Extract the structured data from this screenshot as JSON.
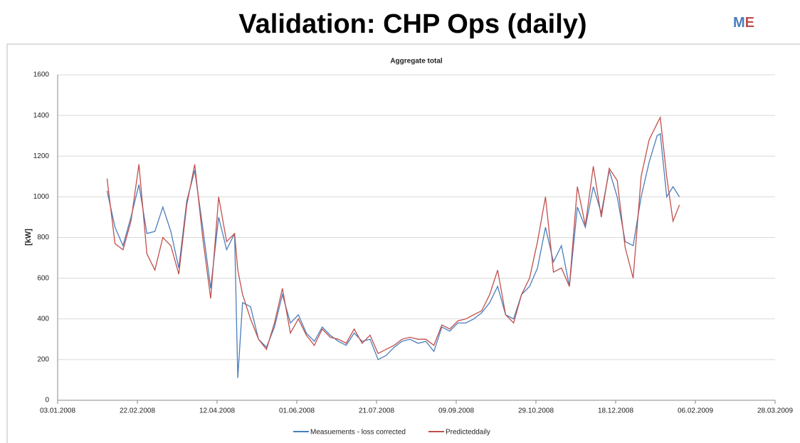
{
  "slide": {
    "title": "Validation: CHP Ops (daily)",
    "logo": [
      "M",
      "E"
    ]
  },
  "chart_data": {
    "type": "line",
    "title": "Aggregate total",
    "ylabel": "[kW]",
    "x": [
      "03.02.2008",
      "08.02.2008",
      "13.02.2008",
      "18.02.2008",
      "23.02.2008",
      "28.02.2008",
      "04.03.2008",
      "09.03.2008",
      "14.03.2008",
      "19.03.2008",
      "24.03.2008",
      "29.03.2008",
      "03.04.2008",
      "08.04.2008",
      "13.04.2008",
      "18.04.2008",
      "23.04.2008",
      "25.04.2008",
      "28.04.2008",
      "03.05.2008",
      "08.05.2008",
      "13.05.2008",
      "18.05.2008",
      "23.05.2008",
      "28.05.2008",
      "02.06.2008",
      "07.06.2008",
      "12.06.2008",
      "17.06.2008",
      "22.06.2008",
      "27.06.2008",
      "02.07.2008",
      "07.07.2008",
      "12.07.2008",
      "17.07.2008",
      "22.07.2008",
      "27.07.2008",
      "01.08.2008",
      "06.08.2008",
      "11.08.2008",
      "16.08.2008",
      "21.08.2008",
      "26.08.2008",
      "31.08.2008",
      "05.09.2008",
      "10.09.2008",
      "15.09.2008",
      "20.09.2008",
      "25.09.2008",
      "30.09.2008",
      "05.10.2008",
      "10.10.2008",
      "15.10.2008",
      "20.10.2008",
      "25.10.2008",
      "30.10.2008",
      "04.11.2008",
      "09.11.2008",
      "14.11.2008",
      "19.11.2008",
      "24.11.2008",
      "29.11.2008",
      "04.12.2008",
      "09.12.2008",
      "14.12.2008",
      "19.12.2008",
      "24.12.2008",
      "29.12.2008",
      "03.01.2009",
      "08.01.2009",
      "13.01.2009",
      "15.01.2009",
      "19.01.2009",
      "23.01.2009",
      "27.01.2009"
    ],
    "series": [
      {
        "name": "Measuements - loss corrected",
        "color": "#4a7ebb",
        "values": [
          1030,
          850,
          760,
          900,
          1060,
          820,
          830,
          950,
          830,
          650,
          980,
          1130,
          850,
          550,
          900,
          740,
          820,
          110,
          480,
          460,
          300,
          260,
          360,
          520,
          380,
          420,
          330,
          290,
          360,
          320,
          290,
          270,
          330,
          290,
          300,
          200,
          220,
          260,
          290,
          300,
          280,
          290,
          240,
          360,
          340,
          380,
          380,
          400,
          430,
          480,
          560,
          420,
          400,
          520,
          560,
          650,
          850,
          680,
          760,
          560,
          950,
          850,
          1050,
          920,
          1130,
          1000,
          780,
          760,
          1000,
          1170,
          1300,
          1310,
          1000,
          1050,
          1000
        ]
      },
      {
        "name": "Predicteddaily",
        "color": "#c0504d",
        "values": [
          1090,
          770,
          740,
          880,
          1160,
          720,
          640,
          800,
          760,
          620,
          960,
          1160,
          800,
          500,
          1000,
          780,
          820,
          640,
          520,
          400,
          300,
          250,
          380,
          550,
          330,
          400,
          320,
          270,
          350,
          310,
          300,
          280,
          350,
          280,
          320,
          230,
          250,
          270,
          300,
          310,
          300,
          300,
          270,
          370,
          350,
          390,
          400,
          420,
          440,
          520,
          640,
          420,
          380,
          520,
          600,
          780,
          1000,
          630,
          650,
          560,
          1050,
          860,
          1150,
          900,
          1140,
          1080,
          750,
          600,
          1100,
          1280,
          1360,
          1390,
          1100,
          880,
          960
        ]
      }
    ],
    "xlim": [
      "03.01.2008",
      "28.03.2009"
    ],
    "xticks": [
      "03.01.2008",
      "22.02.2008",
      "12.04.2008",
      "01.06.2008",
      "21.07.2008",
      "09.09.2008",
      "29.10.2008",
      "18.12.2008",
      "06.02.2009",
      "28.03.2009"
    ],
    "ylim": [
      0,
      1600
    ],
    "yticks": [
      0,
      200,
      400,
      600,
      800,
      1000,
      1200,
      1400,
      1600
    ],
    "grid": true
  }
}
